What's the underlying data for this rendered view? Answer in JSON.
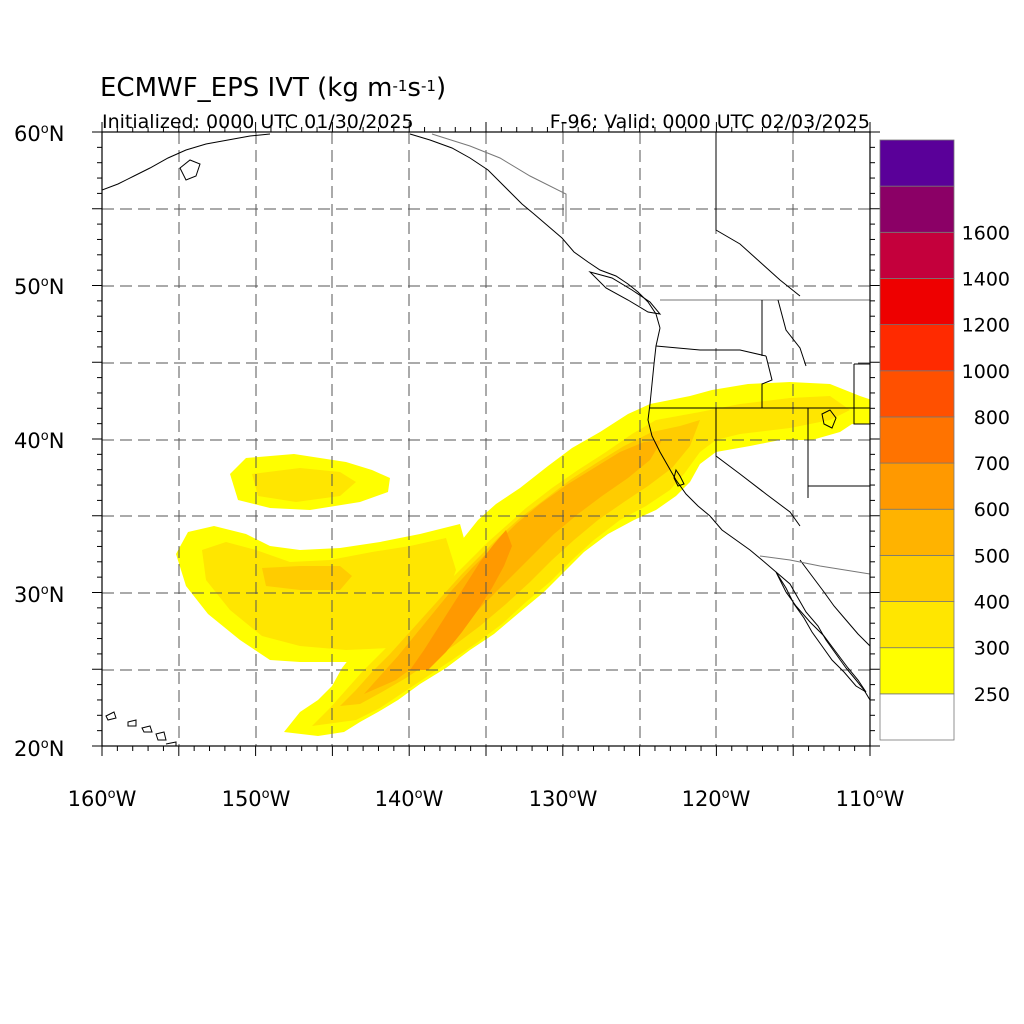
{
  "title": {
    "main": "ECMWF_EPS IVT (kg m",
    "exp1": "-1",
    "mid": "s",
    "exp2": "-1",
    "end": ")"
  },
  "subtitle_left": "Initialized: 0000 UTC 01/30/2025",
  "subtitle_right": "F-96: Valid: 0000 UTC 02/03/2025",
  "map": {
    "lon_range": [
      -160,
      -110
    ],
    "lat_range": [
      20,
      60
    ],
    "lat_labels": [
      "60",
      "50",
      "40",
      "30",
      "20"
    ],
    "lon_labels": [
      "160",
      "150",
      "140",
      "130",
      "120",
      "110"
    ],
    "degree_symbol": "o",
    "north_suffix": "N",
    "west_suffix": "W",
    "gridlines": "dashed"
  },
  "colorbar": {
    "levels": [
      "250",
      "300",
      "400",
      "500",
      "600",
      "700",
      "800",
      "1000",
      "1200",
      "1400",
      "1600"
    ],
    "colors": [
      "#ffff00",
      "#ffe600",
      "#ffcc00",
      "#ffb300",
      "#ff9900",
      "#ff7300",
      "#ff5000",
      "#ff2a00",
      "#ee0000",
      "#c4003c",
      "#8b0066",
      "#5a0099"
    ]
  },
  "ivt_features": [
    {
      "name": "main atmospheric river",
      "range": "250-700",
      "peak_lon": -136,
      "peak_lat": 28
    },
    {
      "name": "subtropical filament",
      "range": "250-400"
    },
    {
      "name": "isolated patch",
      "range": "250-400"
    }
  ]
}
